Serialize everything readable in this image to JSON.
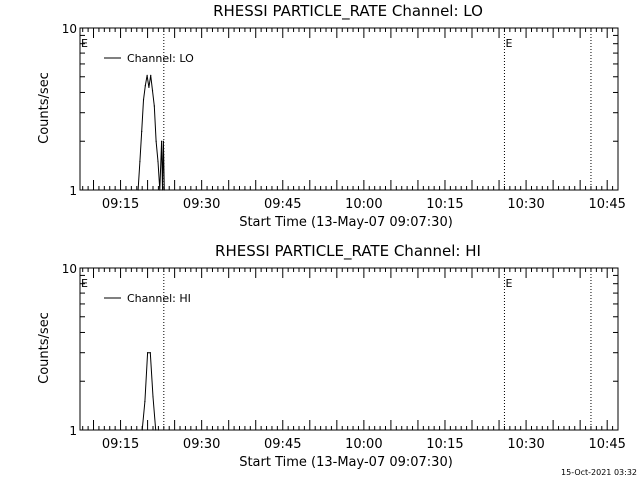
{
  "footer_timestamp": "15-Oct-2021 03:32",
  "chart_data": [
    {
      "type": "line",
      "title": "RHESSI PARTICLE_RATE Channel: LO",
      "xlabel": "Start Time (13-May-07 09:07:30)",
      "ylabel": "Counts/sec",
      "y_scale": "log",
      "ylim": [
        1,
        10
      ],
      "y_tick_labels": [
        "1",
        "10"
      ],
      "xlim": [
        "09:07:30",
        "10:47:00"
      ],
      "x_tick_labels": [
        "09:15",
        "09:30",
        "09:45",
        "10:00",
        "10:15",
        "10:30",
        "10:45"
      ],
      "legend": {
        "entries": [
          "Channel: LO"
        ],
        "placement": "top-left"
      },
      "event_marker_labels": [
        "E",
        "E"
      ],
      "event_markers": [
        {
          "label": "E",
          "time": "09:07:30"
        },
        {
          "label": "E",
          "time": "10:26:00"
        }
      ],
      "vertical_dotted_lines": [
        "09:23:00",
        "10:26:00",
        "10:42:00"
      ],
      "series": [
        {
          "x": [
            "09:18:15",
            "09:18:35",
            "09:18:55",
            "09:19:15",
            "09:19:35",
            "09:19:55",
            "09:20:15",
            "09:20:35",
            "09:20:55",
            "09:21:15",
            "09:21:35",
            "09:21:55",
            "09:22:15",
            "09:22:35",
            "09:22:45",
            "09:22:55",
            "09:23:05"
          ],
          "y": [
            1.0,
            1.5,
            2.3,
            3.6,
            4.4,
            5.1,
            4.3,
            5.1,
            4.1,
            3.3,
            2.0,
            1.5,
            1.0,
            2.0,
            1.0,
            2.0,
            1.0
          ]
        }
      ]
    },
    {
      "type": "line",
      "title": "RHESSI PARTICLE_RATE Channel: HI",
      "xlabel": "Start Time (13-May-07 09:07:30)",
      "ylabel": "Counts/sec",
      "y_scale": "log",
      "ylim": [
        1,
        10
      ],
      "y_tick_labels": [
        "1",
        "10"
      ],
      "xlim": [
        "09:07:30",
        "10:47:00"
      ],
      "x_tick_labels": [
        "09:15",
        "09:30",
        "09:45",
        "10:00",
        "10:15",
        "10:30",
        "10:45"
      ],
      "legend": {
        "entries": [
          "Channel: HI"
        ],
        "placement": "top-left"
      },
      "event_marker_labels": [
        "E",
        "E"
      ],
      "event_markers": [
        {
          "label": "E",
          "time": "09:07:30"
        },
        {
          "label": "E",
          "time": "10:26:00"
        }
      ],
      "vertical_dotted_lines": [
        "09:23:00",
        "10:26:00",
        "10:42:00"
      ],
      "series": [
        {
          "x": [
            "09:19:00",
            "09:19:30",
            "09:20:00",
            "09:20:30",
            "09:21:00",
            "09:21:30",
            "09:22:00"
          ],
          "y": [
            1.0,
            1.5,
            3.0,
            3.0,
            1.6,
            1.0,
            1.0
          ]
        }
      ]
    }
  ]
}
